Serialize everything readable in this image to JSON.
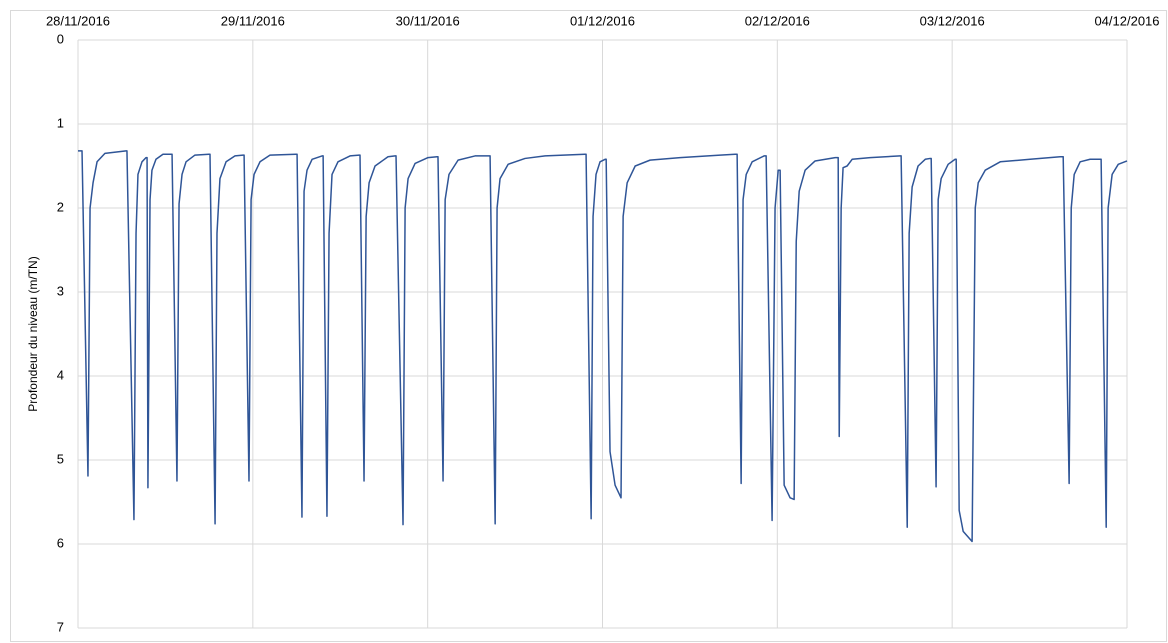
{
  "chart_data": {
    "type": "line",
    "y_label": "Profondeur du niveau (m/TN)",
    "y_inverted": true,
    "x_axis_position": "top",
    "color": "#2f5597",
    "grid": true,
    "xlim": [
      0,
      6
    ],
    "xticks": [
      {
        "value": 0,
        "label": "28/11/2016"
      },
      {
        "value": 1,
        "label": "29/11/2016"
      },
      {
        "value": 2,
        "label": "30/11/2016"
      },
      {
        "value": 3,
        "label": "01/12/2016"
      },
      {
        "value": 4,
        "label": "02/12/2016"
      },
      {
        "value": 5,
        "label": "03/12/2016"
      },
      {
        "value": 6,
        "label": "04/12/2016"
      }
    ],
    "ylim": [
      0,
      7
    ],
    "yticks": [
      0,
      1,
      2,
      3,
      4,
      5,
      6,
      7
    ],
    "x": [
      0,
      0.023,
      0.057,
      0.069,
      0.086,
      0.109,
      0.154,
      0.275,
      0.28,
      0.32,
      0.332,
      0.343,
      0.366,
      0.389,
      0.395,
      0.4,
      0.412,
      0.423,
      0.446,
      0.486,
      0.532,
      0.538,
      0.566,
      0.578,
      0.595,
      0.618,
      0.669,
      0.749,
      0.755,
      0.784,
      0.795,
      0.812,
      0.847,
      0.898,
      0.944,
      0.95,
      0.978,
      0.99,
      1.007,
      1.041,
      1.098,
      1.247,
      1.253,
      1.281,
      1.293,
      1.31,
      1.339,
      1.396,
      1.402,
      1.424,
      1.436,
      1.453,
      1.487,
      1.556,
      1.608,
      1.613,
      1.636,
      1.648,
      1.665,
      1.699,
      1.773,
      1.814,
      1.819,
      1.859,
      1.871,
      1.888,
      1.928,
      2.002,
      2.054,
      2.059,
      2.088,
      2.1,
      2.122,
      2.174,
      2.271,
      2.351,
      2.357,
      2.386,
      2.397,
      2.414,
      2.46,
      2.557,
      2.672,
      2.9,
      2.906,
      2.935,
      2.946,
      2.963,
      2.986,
      3.015,
      3.021,
      3.043,
      3.072,
      3.106,
      3.118,
      3.141,
      3.187,
      3.272,
      3.444,
      3.673,
      3.759,
      3.77,
      3.793,
      3.804,
      3.822,
      3.856,
      3.924,
      3.936,
      3.97,
      3.987,
      4.005,
      4.016,
      4.039,
      4.073,
      4.096,
      4.108,
      4.125,
      4.159,
      4.216,
      4.331,
      4.348,
      4.354,
      4.365,
      4.376,
      4.399,
      4.428,
      4.531,
      4.703,
      4.708,
      4.743,
      4.754,
      4.771,
      4.805,
      4.846,
      4.874,
      4.88,
      4.908,
      4.92,
      4.937,
      4.977,
      5.017,
      5.023,
      5.04,
      5.063,
      5.114,
      5.132,
      5.149,
      5.189,
      5.275,
      5.446,
      5.618,
      5.635,
      5.669,
      5.681,
      5.698,
      5.732,
      5.789,
      5.847,
      5.852,
      5.881,
      5.892,
      5.915,
      5.95,
      6.0
    ],
    "values": [
      1.32,
      1.32,
      5.19,
      2.0,
      1.7,
      1.45,
      1.35,
      1.32,
      1.32,
      5.71,
      2.3,
      1.6,
      1.45,
      1.4,
      1.4,
      5.33,
      1.9,
      1.55,
      1.42,
      1.36,
      1.36,
      1.36,
      5.25,
      1.95,
      1.6,
      1.45,
      1.37,
      1.36,
      1.36,
      5.76,
      2.3,
      1.65,
      1.45,
      1.38,
      1.37,
      1.37,
      5.25,
      1.9,
      1.6,
      1.45,
      1.37,
      1.36,
      1.36,
      5.68,
      1.8,
      1.55,
      1.42,
      1.38,
      1.38,
      5.67,
      2.3,
      1.6,
      1.45,
      1.38,
      1.37,
      1.37,
      5.25,
      2.1,
      1.7,
      1.5,
      1.39,
      1.38,
      1.38,
      5.77,
      2.0,
      1.65,
      1.47,
      1.4,
      1.39,
      1.39,
      5.25,
      1.9,
      1.6,
      1.43,
      1.38,
      1.38,
      1.38,
      5.76,
      2.0,
      1.65,
      1.48,
      1.41,
      1.38,
      1.36,
      1.36,
      5.7,
      2.1,
      1.6,
      1.45,
      1.42,
      1.42,
      4.9,
      5.3,
      5.45,
      2.1,
      1.7,
      1.5,
      1.43,
      1.4,
      1.37,
      1.36,
      1.36,
      5.28,
      1.9,
      1.6,
      1.45,
      1.38,
      1.38,
      5.72,
      2.0,
      1.55,
      1.55,
      5.3,
      5.45,
      5.47,
      2.4,
      1.8,
      1.55,
      1.44,
      1.4,
      1.4,
      4.72,
      2.0,
      1.52,
      1.5,
      1.42,
      1.4,
      1.38,
      1.38,
      5.8,
      2.3,
      1.75,
      1.5,
      1.42,
      1.41,
      1.41,
      5.32,
      1.9,
      1.65,
      1.48,
      1.42,
      1.42,
      5.6,
      5.85,
      5.97,
      2.0,
      1.7,
      1.55,
      1.45,
      1.42,
      1.39,
      1.39,
      5.28,
      2.0,
      1.6,
      1.45,
      1.42,
      1.42,
      1.42,
      5.8,
      2.0,
      1.6,
      1.48,
      1.44
    ]
  }
}
